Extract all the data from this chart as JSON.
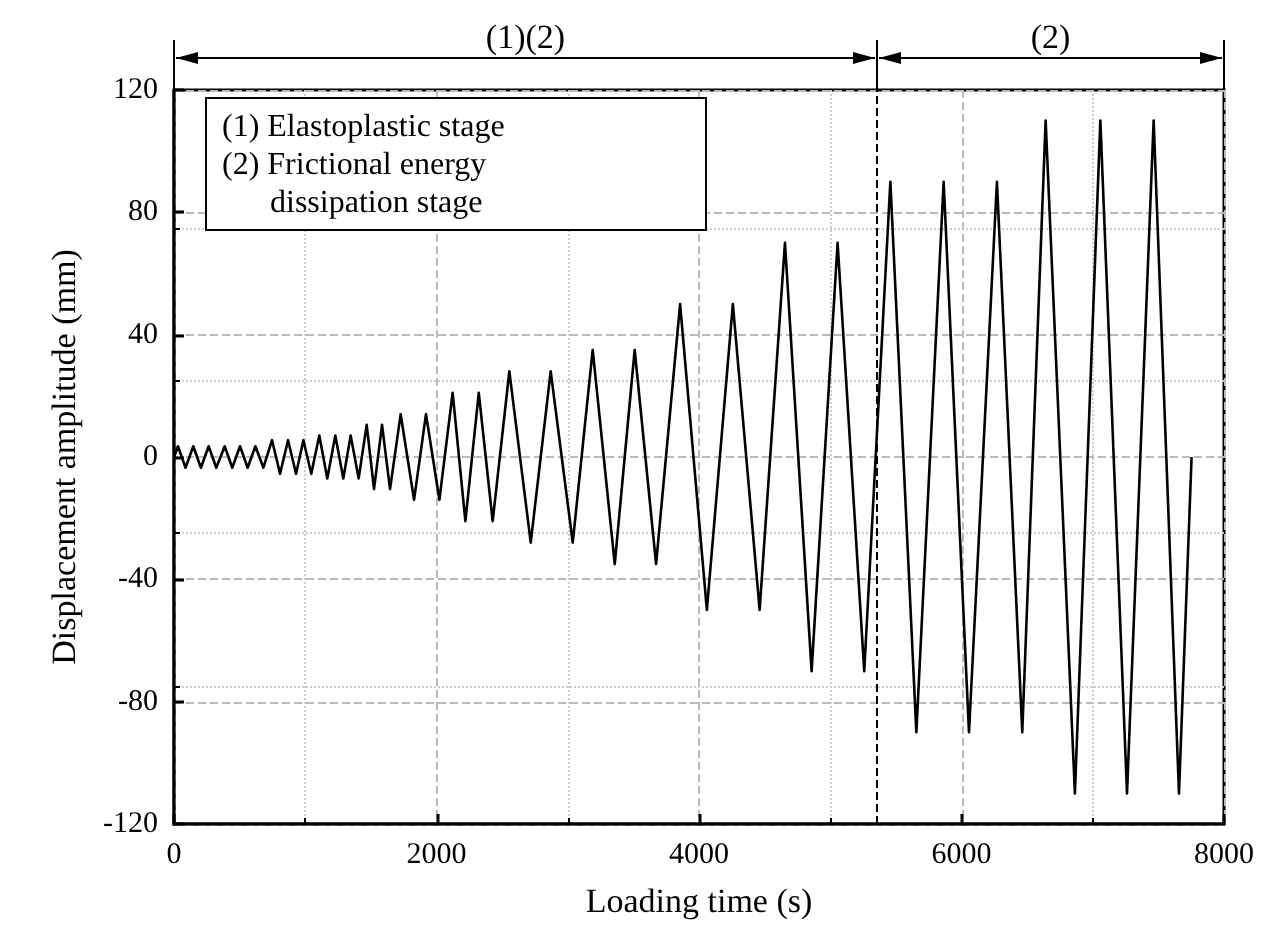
{
  "chart_data": {
    "type": "line",
    "xlabel": "Loading time (s)",
    "ylabel": "Displacement amplitude (mm)",
    "x": [
      0,
      30,
      88,
      147,
      205,
      264,
      322,
      386,
      444,
      503,
      561,
      620,
      681,
      747,
      808,
      869,
      930,
      986,
      1046,
      1107,
      1168,
      1229,
      1290,
      1346,
      1407,
      1468,
      1524,
      1585,
      1646,
      1727,
      1829,
      1920,
      2022,
      2123,
      2220,
      2322,
      2428,
      2555,
      2718,
      2870,
      3038,
      3190,
      3358,
      3510,
      3673,
      3856,
      4060,
      4258,
      4462,
      4655,
      4858,
      5056,
      5259,
      5458,
      5656,
      5864,
      6057,
      6270,
      6463,
      6641,
      6864,
      7058,
      7261,
      7464,
      7657,
      7753
    ],
    "series": [
      {
        "color": "#000000",
        "values": [
          0,
          3.5,
          -3.5,
          3.5,
          -3.5,
          3.5,
          -3.5,
          3.5,
          -3.5,
          3.5,
          -3.5,
          3.5,
          -3.5,
          5.5,
          -5.5,
          5.5,
          -5.5,
          5.5,
          -5.5,
          7,
          -7,
          7,
          -7,
          7,
          -7,
          10.5,
          -10.5,
          10.5,
          -10.5,
          14,
          -14,
          14,
          -14,
          21,
          -21,
          21,
          -21,
          28,
          -28,
          28,
          -28,
          35,
          -35,
          35,
          -35,
          50,
          -50,
          50,
          -50,
          70,
          -70,
          70,
          -70,
          90,
          -90,
          90,
          -90,
          90,
          -90,
          110,
          -110,
          110,
          -110,
          110,
          -110,
          0
        ]
      }
    ],
    "xlim": [
      0,
      8000
    ],
    "xticks": [
      0,
      2000,
      4000,
      6000,
      8000
    ],
    "ylim": [
      -120,
      120
    ],
    "yticks": [
      -120,
      -80,
      -40,
      0,
      40,
      80,
      120
    ],
    "grid": true,
    "marker": "none",
    "line_style": "solid",
    "ref_lines": [
      {
        "axis": "x",
        "value": 5356,
        "line_style": "dashed",
        "color": "#000000"
      }
    ],
    "annotations": [
      "(1)(2)",
      "(2)",
      "(1) Elastoplastic stage",
      "(2) Frictional energy\n      dissipation stage"
    ]
  }
}
